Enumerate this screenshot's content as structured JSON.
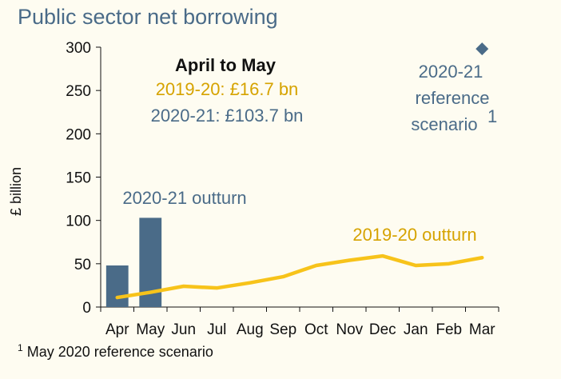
{
  "title": "Public sector net borrowing",
  "footnote": {
    "mark": "1",
    "text": "May 2020  reference scenario"
  },
  "annotations": {
    "period_heading": "April to May",
    "line_2019": "2019-20: £16.7 bn",
    "line_2020": "2020-21: £103.7 bn",
    "bars_label": "2020-21 outturn",
    "line_label": "2019-20 outturn",
    "reference_line1": "2020-21",
    "reference_line2": "reference",
    "reference_line3": "scenario",
    "reference_mark": "1"
  },
  "colors": {
    "bar": "#4a6b88",
    "line": "#f7c31a",
    "gold_text": "#d6a300",
    "blue_text": "#4a6b88",
    "background": "#fefcf1"
  },
  "chart_data": {
    "type": "bar+line",
    "title": "Public sector net borrowing",
    "ylabel": "£ billion",
    "ylim": [
      0,
      300
    ],
    "yticks": [
      0,
      50,
      100,
      150,
      200,
      250,
      300
    ],
    "categories": [
      "Apr",
      "May",
      "Jun",
      "Jul",
      "Aug",
      "Sep",
      "Oct",
      "Nov",
      "Dec",
      "Jan",
      "Feb",
      "Mar"
    ],
    "series": [
      {
        "name": "2020-21 outturn",
        "kind": "bar",
        "values": [
          48,
          103,
          null,
          null,
          null,
          null,
          null,
          null,
          null,
          null,
          null,
          null
        ]
      },
      {
        "name": "2019-20 outturn",
        "kind": "line",
        "values": [
          11,
          17,
          24,
          22,
          28,
          35,
          48,
          54,
          59,
          48,
          50,
          57
        ]
      },
      {
        "name": "2020-21 reference scenario",
        "kind": "point",
        "x": "Mar",
        "value": 298
      }
    ],
    "grid": false
  }
}
